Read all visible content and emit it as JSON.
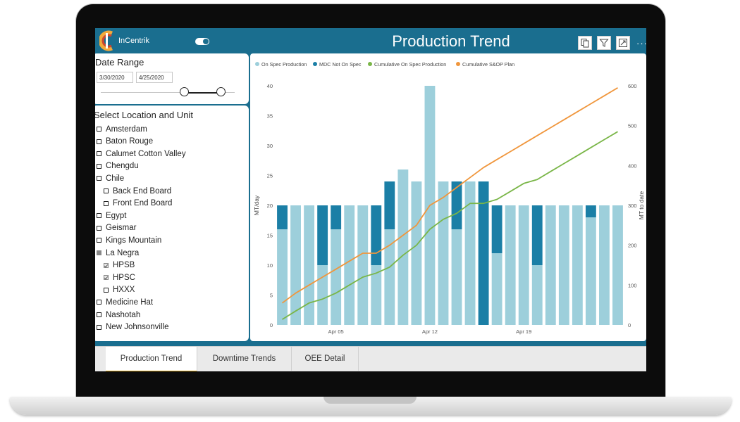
{
  "app": {
    "logo_text": "InCentrik",
    "title": "Production Trend"
  },
  "colors": {
    "header": "#1a6e8f",
    "on_spec": "#9dcfdb",
    "mdc": "#1b7fa6",
    "cum_on_spec": "#7ab648",
    "cum_plan": "#f0963c",
    "tab_active": "#e6b325"
  },
  "header": {
    "icons": [
      "copy-icon",
      "filter-icon",
      "focus-mode-icon",
      "more-options-icon"
    ],
    "more": "···"
  },
  "date_range": {
    "label": "Date Range",
    "start": "3/30/2020",
    "end": "4/25/2020"
  },
  "locations": {
    "title": "Select Location and Unit",
    "items": [
      {
        "label": "Amsterdam",
        "level": 0,
        "state": "unchecked"
      },
      {
        "label": "Baton Rouge",
        "level": 0,
        "state": "unchecked"
      },
      {
        "label": "Calumet Cotton Valley",
        "level": 0,
        "state": "unchecked"
      },
      {
        "label": "Chengdu",
        "level": 0,
        "state": "unchecked"
      },
      {
        "label": "Chile",
        "level": 0,
        "state": "unchecked"
      },
      {
        "label": "Back End Board",
        "level": 1,
        "state": "unchecked"
      },
      {
        "label": "Front End Board",
        "level": 1,
        "state": "unchecked"
      },
      {
        "label": "Egypt",
        "level": 0,
        "state": "unchecked"
      },
      {
        "label": "Geismar",
        "level": 0,
        "state": "unchecked"
      },
      {
        "label": "Kings Mountain",
        "level": 0,
        "state": "unchecked"
      },
      {
        "label": "La Negra",
        "level": 0,
        "state": "partial"
      },
      {
        "label": "HPSB",
        "level": 1,
        "state": "checked"
      },
      {
        "label": "HPSC",
        "level": 1,
        "state": "checked"
      },
      {
        "label": "HXXX",
        "level": 1,
        "state": "unchecked"
      },
      {
        "label": "Medicine Hat",
        "level": 0,
        "state": "unchecked"
      },
      {
        "label": "Nashotah",
        "level": 0,
        "state": "unchecked"
      },
      {
        "label": "New Johnsonville",
        "level": 0,
        "state": "unchecked"
      }
    ]
  },
  "chart_data": {
    "type": "bar",
    "legend": [
      "On Spec Production",
      "MDC Not On Spec",
      "Cumulative On Spec Production",
      "Cumulative S&OP Plan"
    ],
    "legend_position": "top-left",
    "ylabel": "MT/day",
    "y2label": "MT to date",
    "ylim": [
      0,
      40
    ],
    "y2lim": [
      0,
      600
    ],
    "yticks": [
      "0",
      "5",
      "10",
      "15",
      "20",
      "25",
      "30",
      "35",
      "40"
    ],
    "y2ticks": [
      "0",
      "100",
      "200",
      "300",
      "400",
      "500",
      "600"
    ],
    "xticks": [
      {
        "label": "Apr 05",
        "index": 4
      },
      {
        "label": "Apr 12",
        "index": 11
      },
      {
        "label": "Apr 19",
        "index": 18
      }
    ],
    "on_spec": [
      16,
      20,
      20,
      10,
      16,
      20,
      20,
      10,
      16,
      26,
      24,
      40,
      24,
      16,
      24,
      0,
      12,
      20,
      20,
      10,
      20,
      20,
      20,
      18,
      20,
      20
    ],
    "mdc_not_on_spec": [
      4,
      0,
      0,
      10,
      4,
      0,
      0,
      10,
      8,
      0,
      0,
      0,
      0,
      8,
      0,
      24,
      8,
      0,
      0,
      10,
      0,
      0,
      0,
      2,
      0,
      0
    ],
    "cumulative_on_spec": [
      14,
      35,
      55,
      65,
      80,
      100,
      120,
      130,
      145,
      175,
      200,
      240,
      265,
      280,
      305,
      305,
      315,
      335,
      355,
      365,
      385,
      405,
      425,
      445,
      465,
      485
    ],
    "cumulative_plan": [
      55,
      80,
      100,
      120,
      140,
      160,
      180,
      180,
      200,
      225,
      250,
      300,
      320,
      345,
      370,
      395,
      415,
      435,
      455,
      475,
      495,
      515,
      535,
      555,
      575,
      595
    ]
  },
  "tabs": [
    {
      "label": "Production Trend",
      "active": true
    },
    {
      "label": "Downtime Trends",
      "active": false
    },
    {
      "label": "OEE Detail",
      "active": false
    }
  ]
}
